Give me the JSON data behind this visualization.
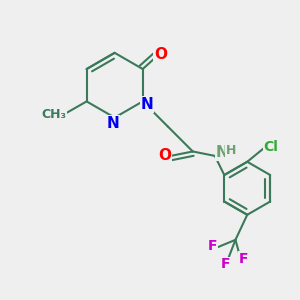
{
  "bg_color": "#efefef",
  "bond_color": "#3a7a5a",
  "bond_width": 1.5,
  "atom_colors": {
    "O": "#ff0000",
    "N": "#0000ee",
    "NH": "#6fa06f",
    "Cl": "#33aa33",
    "F": "#cc00cc",
    "C": "#3a7a5a"
  },
  "font_size": 10
}
